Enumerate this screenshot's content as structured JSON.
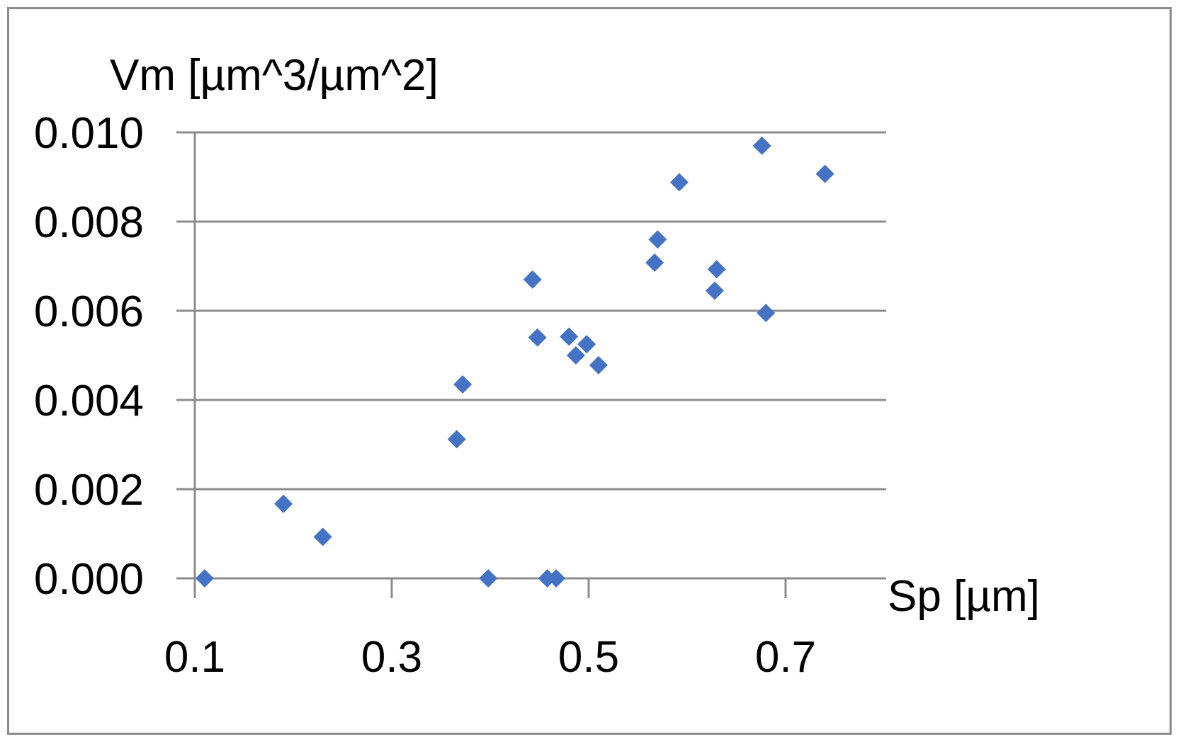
{
  "chart_data": {
    "type": "scatter",
    "title": "",
    "xlabel": "Sp [µm]",
    "ylabel": "Vm [µm^3/µm^2]",
    "xlim": [
      0.1,
      0.8
    ],
    "ylim": [
      0.0,
      0.01
    ],
    "x_ticks": [
      "0.1",
      "0.3",
      "0.5",
      "0.7"
    ],
    "y_ticks": [
      "0.000",
      "0.002",
      "0.004",
      "0.006",
      "0.008",
      "0.010"
    ],
    "grid": "horizontal",
    "marker": "diamond",
    "color": "#4472c4",
    "series": [
      {
        "x": [
          0.11,
          0.19,
          0.23,
          0.366,
          0.372,
          0.398,
          0.443,
          0.448,
          0.458,
          0.467,
          0.48,
          0.487,
          0.498,
          0.51,
          0.567,
          0.57,
          0.592,
          0.628,
          0.63,
          0.676,
          0.68,
          0.74
        ],
        "y": [
          0.0,
          0.00167,
          0.00093,
          0.00312,
          0.00435,
          0.0,
          0.0067,
          0.0054,
          0.0,
          0.0,
          0.00542,
          0.005,
          0.00525,
          0.00478,
          0.00708,
          0.0076,
          0.00888,
          0.00645,
          0.00693,
          0.0097,
          0.00595,
          0.00907
        ]
      }
    ]
  }
}
